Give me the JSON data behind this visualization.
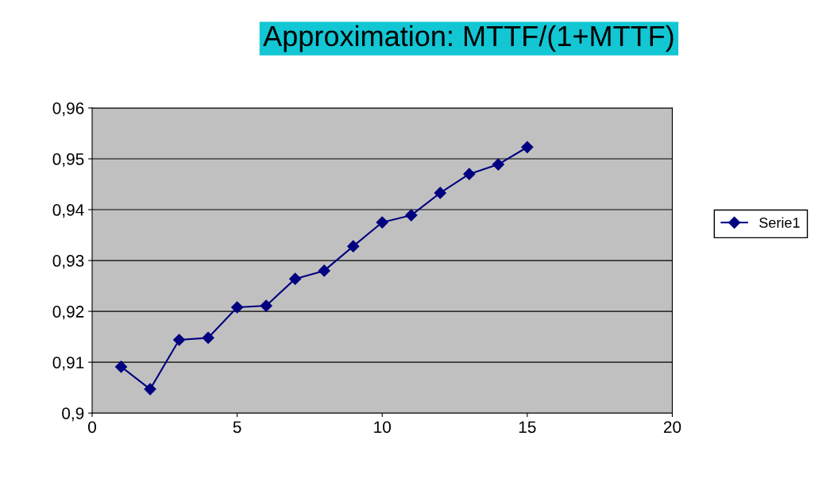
{
  "chart_data": {
    "type": "line",
    "title": "Approximation: MTTF/(1+MTTF)",
    "x": [
      1,
      2,
      3,
      4,
      5,
      6,
      7,
      8,
      9,
      10,
      11,
      12,
      13,
      14,
      15
    ],
    "series": [
      {
        "name": "Serie1",
        "color": "#000080",
        "values": [
          0.9091,
          0.9047,
          0.9144,
          0.9148,
          0.9208,
          0.9211,
          0.9264,
          0.928,
          0.9328,
          0.9375,
          0.9389,
          0.9433,
          0.947,
          0.9489,
          0.9523
        ]
      }
    ],
    "xlim": [
      0,
      20
    ],
    "xticks": [
      0,
      5,
      10,
      15,
      20
    ],
    "ylim": [
      0.9,
      0.96
    ],
    "yticks": [
      {
        "value": 0.9,
        "label": "0,9"
      },
      {
        "value": 0.91,
        "label": "0,91"
      },
      {
        "value": 0.92,
        "label": "0,92"
      },
      {
        "value": 0.93,
        "label": "0,93"
      },
      {
        "value": 0.94,
        "label": "0,94"
      },
      {
        "value": 0.95,
        "label": "0,95"
      },
      {
        "value": 0.96,
        "label": "0,96"
      }
    ],
    "grid": "y",
    "legend": "right",
    "marker": "diamond",
    "line_style": "solid"
  }
}
